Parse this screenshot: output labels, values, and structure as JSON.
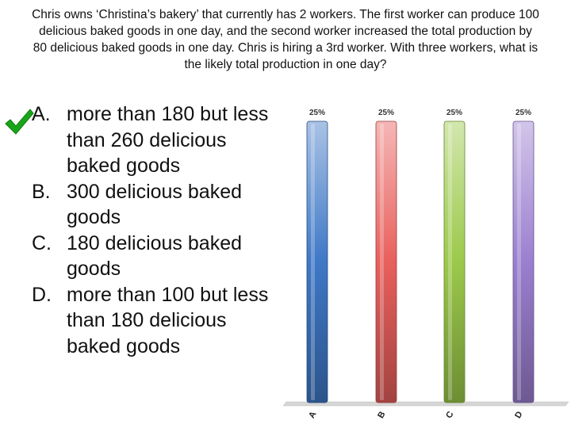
{
  "question": "Chris owns ‘Christina’s bakery’ that currently has 2 workers. The first worker can produce 100 delicious baked goods in one day, and the second worker increased the total production by 80 delicious baked goods in one day. Chris is hiring a 3rd worker. With three workers, what is the likely total production in one day?",
  "options": [
    {
      "letter": "A.",
      "text": "more than 180 but less than 260 delicious baked goods"
    },
    {
      "letter": "B.",
      "text": "300 delicious baked goods"
    },
    {
      "letter": "C.",
      "text": "180 delicious baked goods"
    },
    {
      "letter": "D.",
      "text": "more than 100 but less than 180 delicious baked goods"
    }
  ],
  "correct_icon": "checkmark-icon",
  "chart_data": {
    "type": "bar",
    "categories": [
      "A",
      "B",
      "C",
      "D"
    ],
    "values": [
      25,
      25,
      25,
      25
    ],
    "data_labels": [
      "25%",
      "25%",
      "25%",
      "25%"
    ],
    "ylim": [
      0,
      25
    ],
    "grid": false,
    "colors": [
      "#3f78c6",
      "#e8605c",
      "#9cc94a",
      "#9b7fd0"
    ]
  }
}
